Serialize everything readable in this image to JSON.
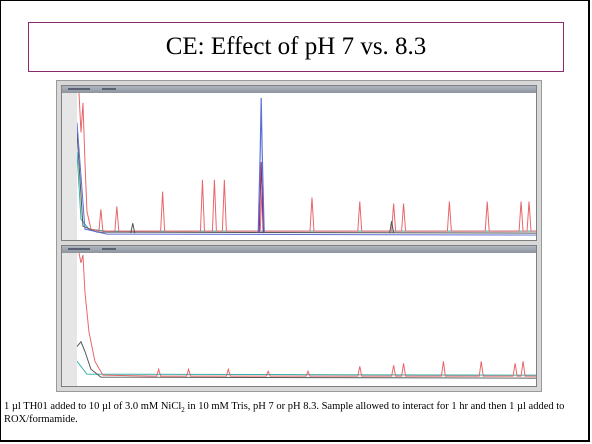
{
  "slide": {
    "title": "CE: Effect of pH 7 vs. 8.3",
    "caption": {
      "part1": "1 µl TH01 added to 10 µl of 3.0 mM NiCl",
      "subscript": "2",
      "part2": " in 10 mM Tris, pH 7 or pH 8.3.  Sample allowed to interact for 1 hr and then 1 µl added to ROX/formamide."
    }
  },
  "colors": {
    "frame": "#000000",
    "title_border": "#8a2a6e",
    "trace_red": "#e8666a",
    "trace_blue": "#5b6fd6",
    "trace_teal": "#2fb0a8",
    "trace_gray": "#555555"
  }
}
